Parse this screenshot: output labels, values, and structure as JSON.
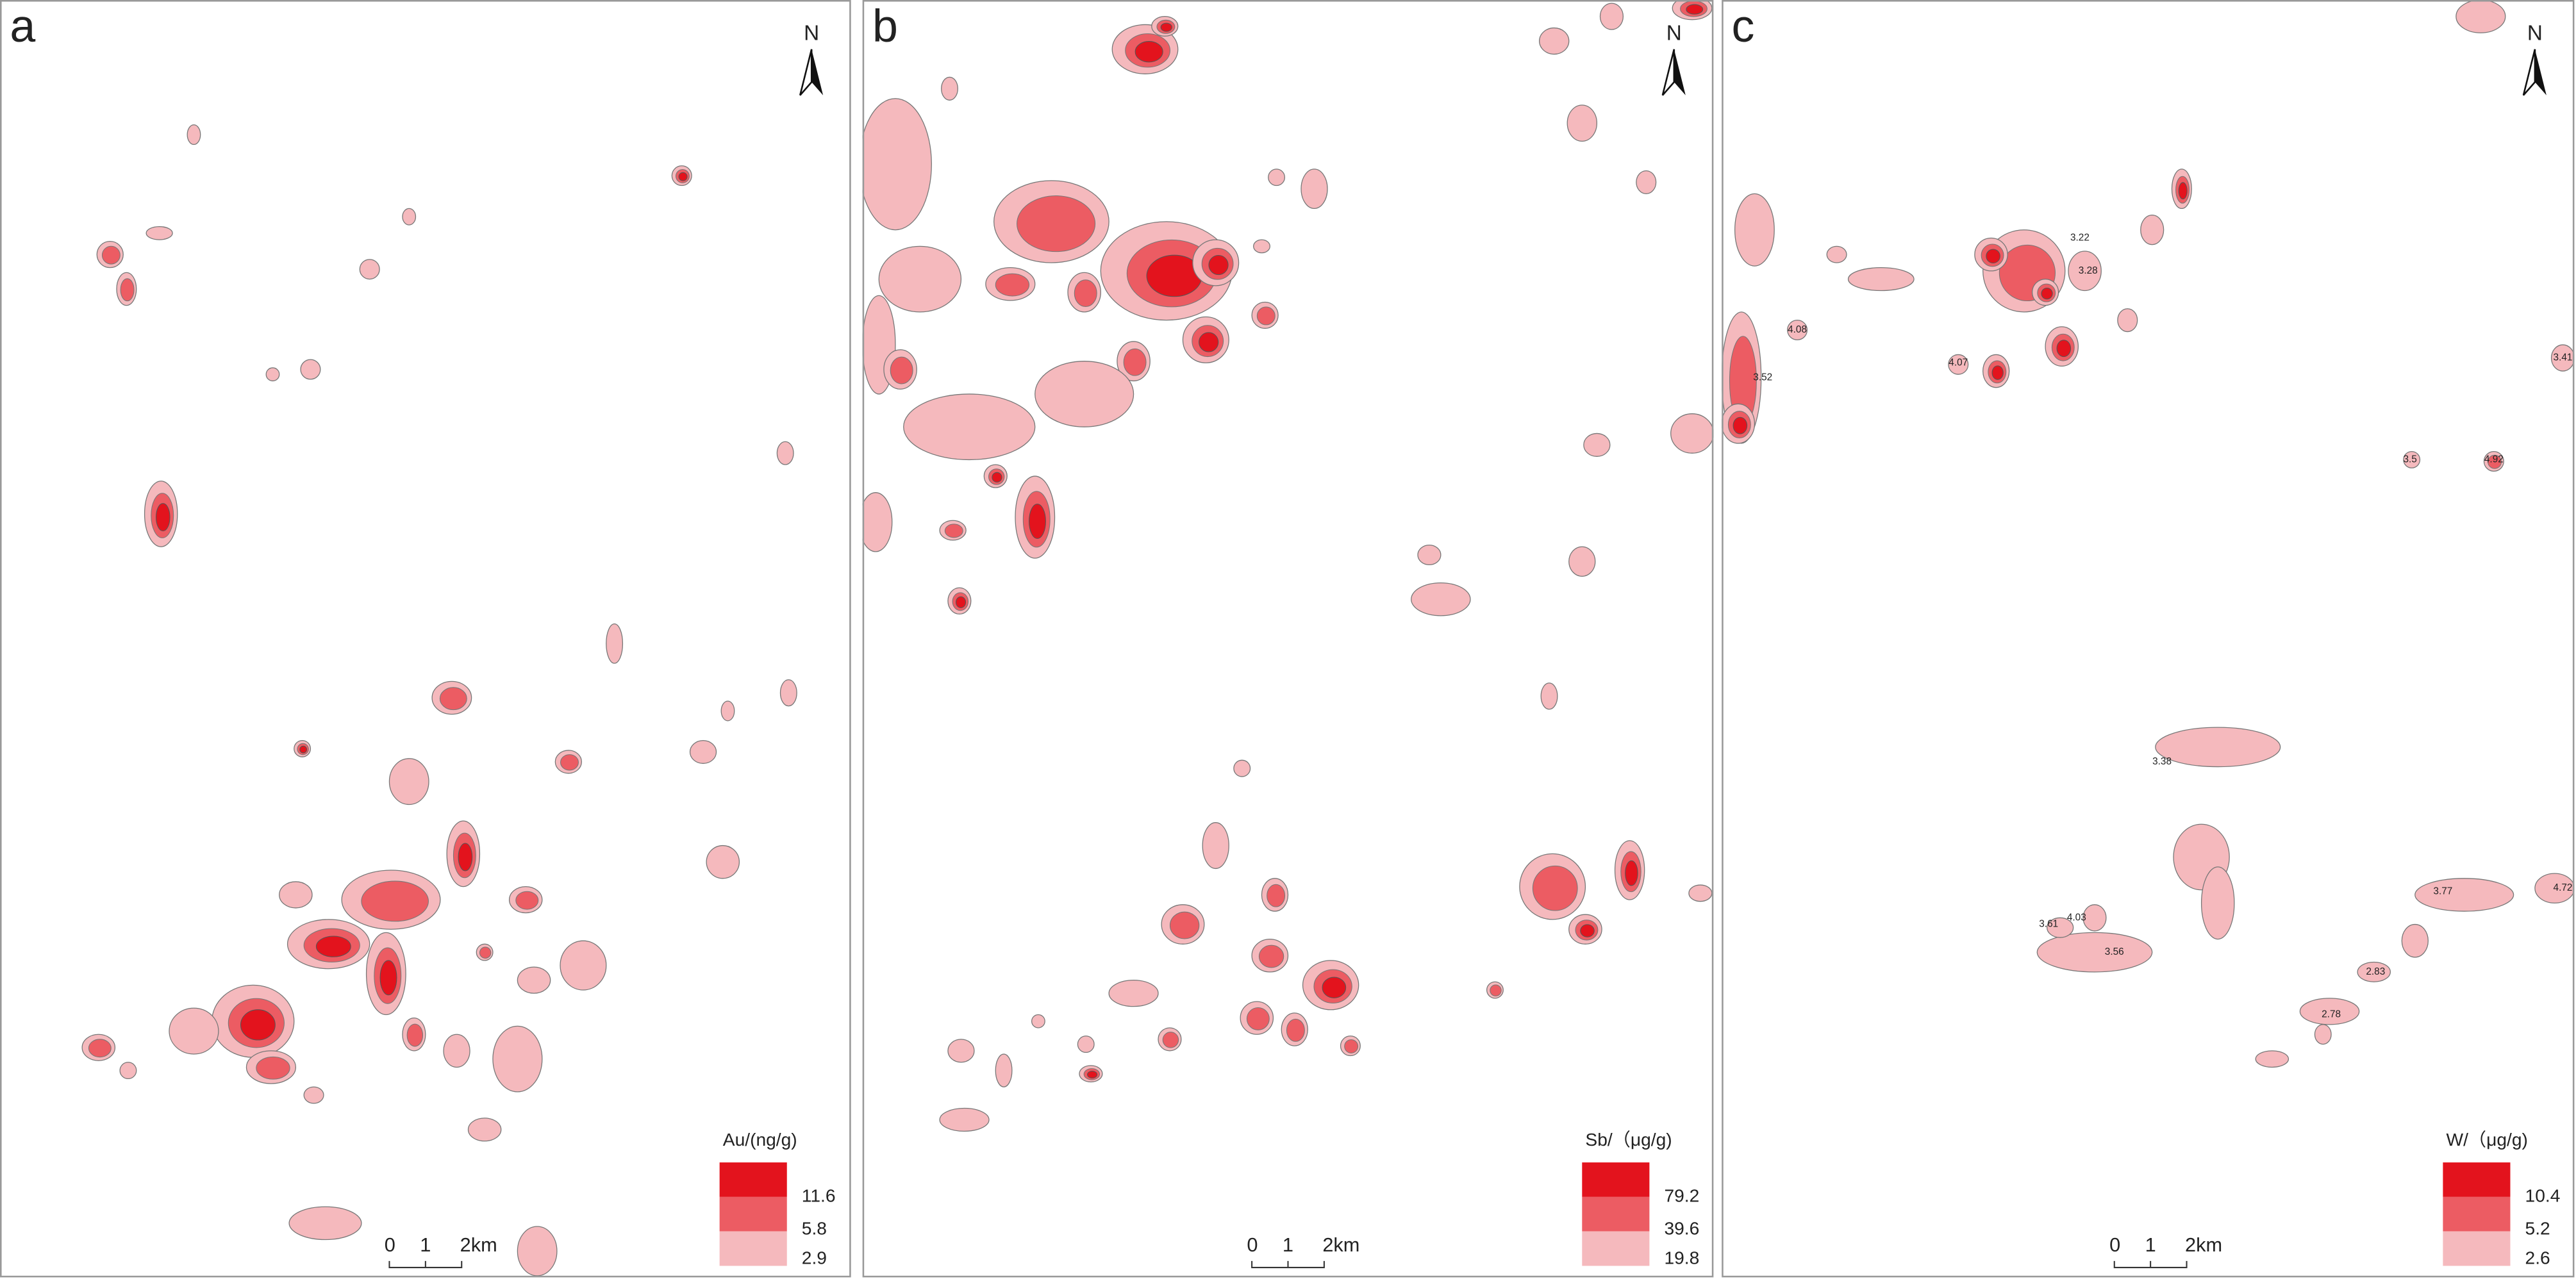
{
  "panels": [
    {
      "label": "a",
      "north": "N",
      "legend": {
        "title": "Au/(ng/g)",
        "levels": [
          11.6,
          5.8,
          2.9
        ]
      },
      "scale": [
        "0",
        "1",
        "2km"
      ],
      "annotations": []
    },
    {
      "label": "b",
      "north": "N",
      "legend": {
        "title": "Sb/（μg/g)",
        "levels": [
          79.2,
          39.6,
          19.8
        ]
      },
      "scale": [
        "0",
        "1",
        "2km"
      ],
      "annotations": []
    },
    {
      "label": "c",
      "north": "N",
      "legend": {
        "title": "W/（μg/g)",
        "levels": [
          10.4,
          5.2,
          2.6
        ]
      },
      "scale": [
        "0",
        "1",
        "2km"
      ],
      "annotations": [
        "3.22",
        "3.28",
        "4.08",
        "4.07",
        "3.52",
        "3.41",
        "3.5",
        "4.92",
        "3.38",
        "4.03",
        "3.61",
        "3.56",
        "3.77",
        "4.72",
        "2.83",
        "2.78"
      ]
    }
  ]
}
